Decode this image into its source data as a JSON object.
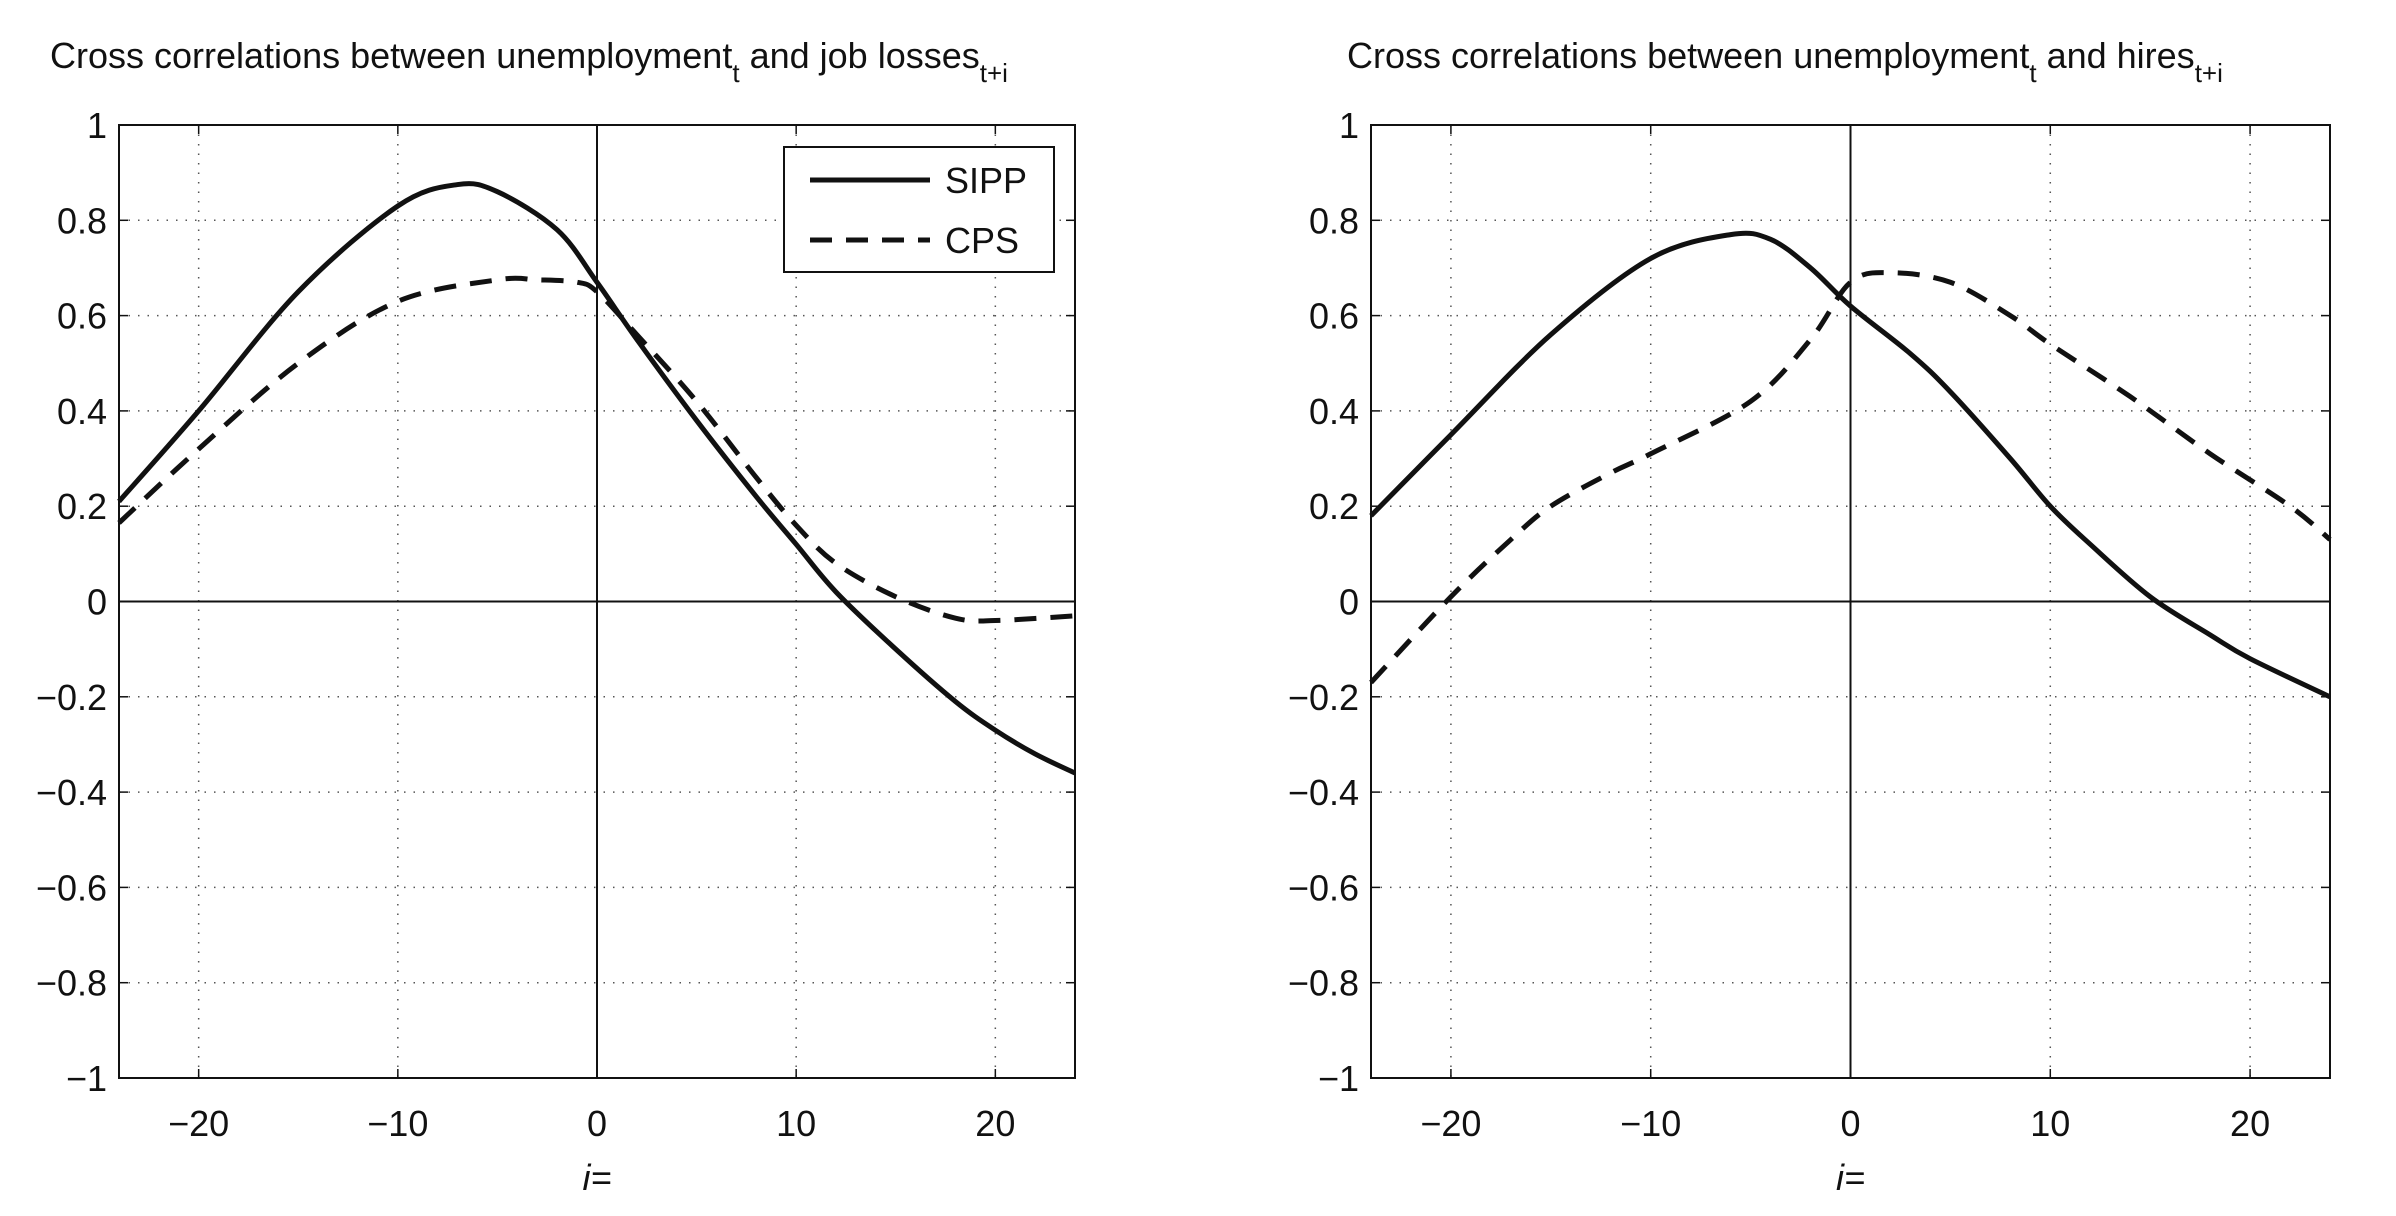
{
  "chart_data": [
    {
      "type": "line",
      "title": {
        "main": "Cross correlations between unemployment",
        "sub1": "t",
        "mid": " and job losses",
        "sub2": "t+i"
      },
      "xlabel": "i=",
      "ylabel": "",
      "xlim": [
        -24,
        24
      ],
      "ylim": [
        -1,
        1
      ],
      "xticks": [
        -20,
        -10,
        0,
        10,
        20
      ],
      "xtick_labels": [
        "−20",
        "−10",
        "0",
        "10",
        "20"
      ],
      "yticks": [
        -1,
        -0.8,
        -0.6,
        -0.4,
        -0.2,
        0,
        0.2,
        0.4,
        0.6,
        0.8,
        1
      ],
      "ytick_labels": [
        "−1",
        "−0.8",
        "−0.6",
        "−0.4",
        "−0.2",
        "0",
        "0.2",
        "0.4",
        "0.6",
        "0.8",
        "1"
      ],
      "grid": true,
      "legend": "top-right",
      "series": [
        {
          "name": "SIPP",
          "style": "solid",
          "color": "#111111",
          "x": [
            -24,
            -20,
            -15,
            -10,
            -7,
            -5,
            -2,
            0,
            2,
            5,
            8,
            10,
            12,
            15,
            18,
            20,
            22,
            24
          ],
          "y": [
            0.21,
            0.4,
            0.65,
            0.83,
            0.875,
            0.86,
            0.78,
            0.67,
            0.55,
            0.38,
            0.22,
            0.12,
            0.02,
            -0.1,
            -0.21,
            -0.27,
            -0.32,
            -0.36
          ]
        },
        {
          "name": "CPS",
          "style": "dashed",
          "color": "#111111",
          "x": [
            -24,
            -20,
            -15,
            -10,
            -5,
            -3,
            -1,
            0,
            2,
            5,
            8,
            10,
            12,
            15,
            18,
            20,
            24
          ],
          "y": [
            0.165,
            0.32,
            0.5,
            0.63,
            0.675,
            0.675,
            0.67,
            0.65,
            0.56,
            0.42,
            0.26,
            0.16,
            0.08,
            0.01,
            -0.035,
            -0.04,
            -0.03
          ]
        }
      ]
    },
    {
      "type": "line",
      "title": {
        "main": "Cross correlations between unemployment",
        "sub1": "t",
        "mid": " and hires",
        "sub2": "t+i"
      },
      "xlabel": "i=",
      "ylabel": "",
      "xlim": [
        -24,
        24
      ],
      "ylim": [
        -1,
        1
      ],
      "xticks": [
        -20,
        -10,
        0,
        10,
        20
      ],
      "xtick_labels": [
        "−20",
        "−10",
        "0",
        "10",
        "20"
      ],
      "yticks": [
        -1,
        -0.8,
        -0.6,
        -0.4,
        -0.2,
        0,
        0.2,
        0.4,
        0.6,
        0.8,
        1
      ],
      "ytick_labels": [
        "−1",
        "−0.8",
        "−0.6",
        "−0.4",
        "−0.2",
        "0",
        "0.2",
        "0.4",
        "0.6",
        "0.8",
        "1"
      ],
      "grid": true,
      "series": [
        {
          "style": "solid",
          "color": "#111111",
          "x": [
            -24,
            -20,
            -15,
            -10,
            -6,
            -4,
            -2,
            0,
            3,
            5,
            8,
            10,
            12,
            15,
            18,
            20,
            24
          ],
          "y": [
            0.18,
            0.35,
            0.56,
            0.72,
            0.77,
            0.76,
            0.7,
            0.62,
            0.52,
            0.44,
            0.3,
            0.2,
            0.12,
            0.01,
            -0.07,
            -0.12,
            -0.2
          ]
        },
        {
          "style": "dashed",
          "color": "#111111",
          "x": [
            -24,
            -20,
            -17,
            -15,
            -12,
            -10,
            -5,
            -2,
            0,
            2,
            5,
            8,
            10,
            14,
            18,
            22,
            24
          ],
          "y": [
            -0.17,
            0.01,
            0.13,
            0.2,
            0.27,
            0.31,
            0.42,
            0.55,
            0.67,
            0.69,
            0.67,
            0.6,
            0.54,
            0.43,
            0.31,
            0.2,
            0.13
          ]
        }
      ]
    }
  ]
}
